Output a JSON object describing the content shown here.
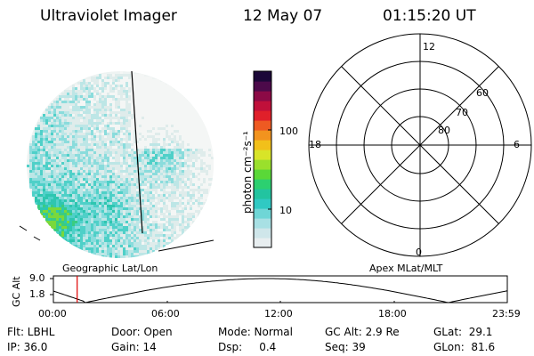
{
  "header": {
    "instrument": "Ultraviolet Imager",
    "date": "12 May 07",
    "time": "01:15:20 UT"
  },
  "colorbar": {
    "unit_label": "photon cm⁻²s⁻¹",
    "tick_labels": [
      "100",
      "10"
    ],
    "tick_values": [
      100,
      10
    ],
    "scale": "log",
    "colors": [
      "#e8eef0",
      "#cfe6ea",
      "#a8e0e4",
      "#6fd6d6",
      "#30c9c3",
      "#22c4a0",
      "#2cd070",
      "#5ad838",
      "#9ae02c",
      "#d8e428",
      "#f2c01a",
      "#f2931e",
      "#ee5a22",
      "#e0202a",
      "#c0103a",
      "#8c0a46",
      "#4c0a4a",
      "#1c0838"
    ]
  },
  "map_left": {
    "caption": "Geographic Lat/Lon"
  },
  "polar_right": {
    "caption": "Apex MLat/MLT",
    "lat_labels": [
      "80",
      "70",
      "60"
    ],
    "mlt_labels": [
      "12",
      "18",
      "6",
      "0"
    ]
  },
  "altitude_plot": {
    "axis_label": "GC Alt",
    "y_ticks": [
      "9.0",
      "1.8"
    ],
    "x_ticks": [
      "00:00",
      "06:00",
      "12:00",
      "18:00",
      "23:59"
    ],
    "current_time_marker": "01:15:20"
  },
  "footer": {
    "flt": "Flt: LBHL",
    "ip": "IP: 36.0",
    "door": "Door: Open",
    "gain": "Gain: 14",
    "mode": "Mode: Normal",
    "dsp": "Dsp:     0.4",
    "gc_alt": "GC Alt: 2.9 Re",
    "seq": "Seq: 39",
    "glat": "GLat:  29.1",
    "glon": "GLon:  81.6"
  }
}
